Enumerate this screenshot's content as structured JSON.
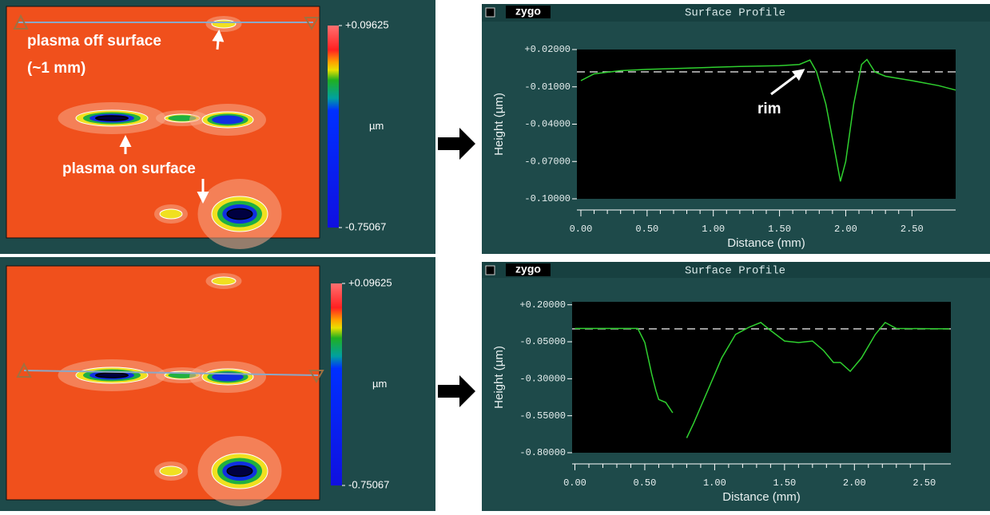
{
  "maps": [
    {
      "annotations": [
        "plasma off surface",
        "(~1 mm)",
        "plasma on surface"
      ],
      "colorbar": {
        "max": {
          "value": 0.09625,
          "label": "+0.09625"
        },
        "min": -0.75067,
        "unit": "µm"
      }
    },
    {
      "colorbar": {
        "max": {
          "value": 0.09625,
          "label": "+0.09625"
        },
        "min": -0.75067,
        "unit": "µm"
      }
    }
  ],
  "chart_data": [
    {
      "type": "line",
      "logo": "zygo",
      "title": "Surface Profile",
      "x_label": "Distance (mm)",
      "y_label": "Height (µm)",
      "annotation": "rim",
      "xlim": [
        -0.03,
        2.83
      ],
      "ylim": [
        -0.1,
        0.02
      ],
      "xticks": [
        {
          "value": 0,
          "label": "0.00"
        },
        {
          "value": 0.5,
          "label": "0.50"
        },
        {
          "value": 1,
          "label": "1.00"
        },
        {
          "value": 1.5,
          "label": "1.50"
        },
        {
          "value": 2,
          "label": "2.00"
        },
        {
          "value": 2.5,
          "label": "2.50"
        }
      ],
      "yticks": [
        {
          "value": 0.02,
          "label": "+0.02000"
        },
        {
          "value": -0.01,
          "label": "-0.01000"
        },
        {
          "value": -0.04,
          "label": "-0.04000"
        },
        {
          "value": -0.07,
          "label": "-0.07000"
        },
        {
          "value": -0.1,
          "label": "-0.10000"
        }
      ],
      "reference": 0.002,
      "x": [
        0,
        0.1,
        0.3,
        0.5,
        0.8,
        1.0,
        1.2,
        1.5,
        1.65,
        1.73,
        1.78,
        1.85,
        1.92,
        1.96,
        2.0,
        2.06,
        2.12,
        2.16,
        2.22,
        2.3,
        2.5,
        2.7,
        2.83
      ],
      "series": [
        {
          "color": "#2fd02f",
          "values": [
            -0.005,
            0.0004,
            0.003,
            0.004,
            0.005,
            0.0057,
            0.0063,
            0.007,
            0.008,
            0.0115,
            0.002,
            -0.024,
            -0.063,
            -0.086,
            -0.07,
            -0.024,
            0.008,
            0.012,
            0.002,
            -0.0015,
            -0.005,
            -0.009,
            -0.0126
          ]
        }
      ]
    },
    {
      "type": "line",
      "logo": "zygo",
      "title": "Surface Profile",
      "x_label": "Distance (mm)",
      "y_label": "Height (µm)",
      "xlim": [
        -0.02,
        2.69
      ],
      "ylim": [
        -0.8,
        0.22
      ],
      "xticks": [
        {
          "value": 0,
          "label": "0.00"
        },
        {
          "value": 0.5,
          "label": "0.50"
        },
        {
          "value": 1,
          "label": "1.00"
        },
        {
          "value": 1.5,
          "label": "1.50"
        },
        {
          "value": 2,
          "label": "2.00"
        },
        {
          "value": 2.5,
          "label": "2.50"
        }
      ],
      "yticks": [
        {
          "value": 0.2,
          "label": "+0.20000"
        },
        {
          "value": -0.05,
          "label": "-0.05000"
        },
        {
          "value": -0.3,
          "label": "-0.30000"
        },
        {
          "value": -0.55,
          "label": "-0.55000"
        },
        {
          "value": -0.8,
          "label": "-0.80000"
        }
      ],
      "reference": 0.037,
      "x": [
        0,
        0.45,
        0.5,
        0.55,
        0.58,
        0.6,
        0.65,
        0.7,
        0.75,
        0.8,
        0.85,
        0.95,
        1.05,
        1.15,
        1.25,
        1.33,
        1.4,
        1.5,
        1.6,
        1.7,
        1.78,
        1.85,
        1.9,
        1.97,
        2.05,
        2.15,
        2.22,
        2.3,
        2.68
      ],
      "series": [
        {
          "color": "#2fd02f",
          "values": [
            0.04,
            0.04,
            -0.055,
            -0.27,
            -0.38,
            -0.44,
            -0.46,
            -0.53,
            null,
            -0.7,
            -0.6,
            -0.38,
            -0.16,
            0.0,
            0.05,
            0.08,
            0.026,
            -0.045,
            -0.055,
            -0.045,
            -0.11,
            -0.19,
            -0.19,
            -0.25,
            -0.16,
            0.0,
            0.08,
            0.04,
            0.037
          ]
        }
      ]
    }
  ]
}
